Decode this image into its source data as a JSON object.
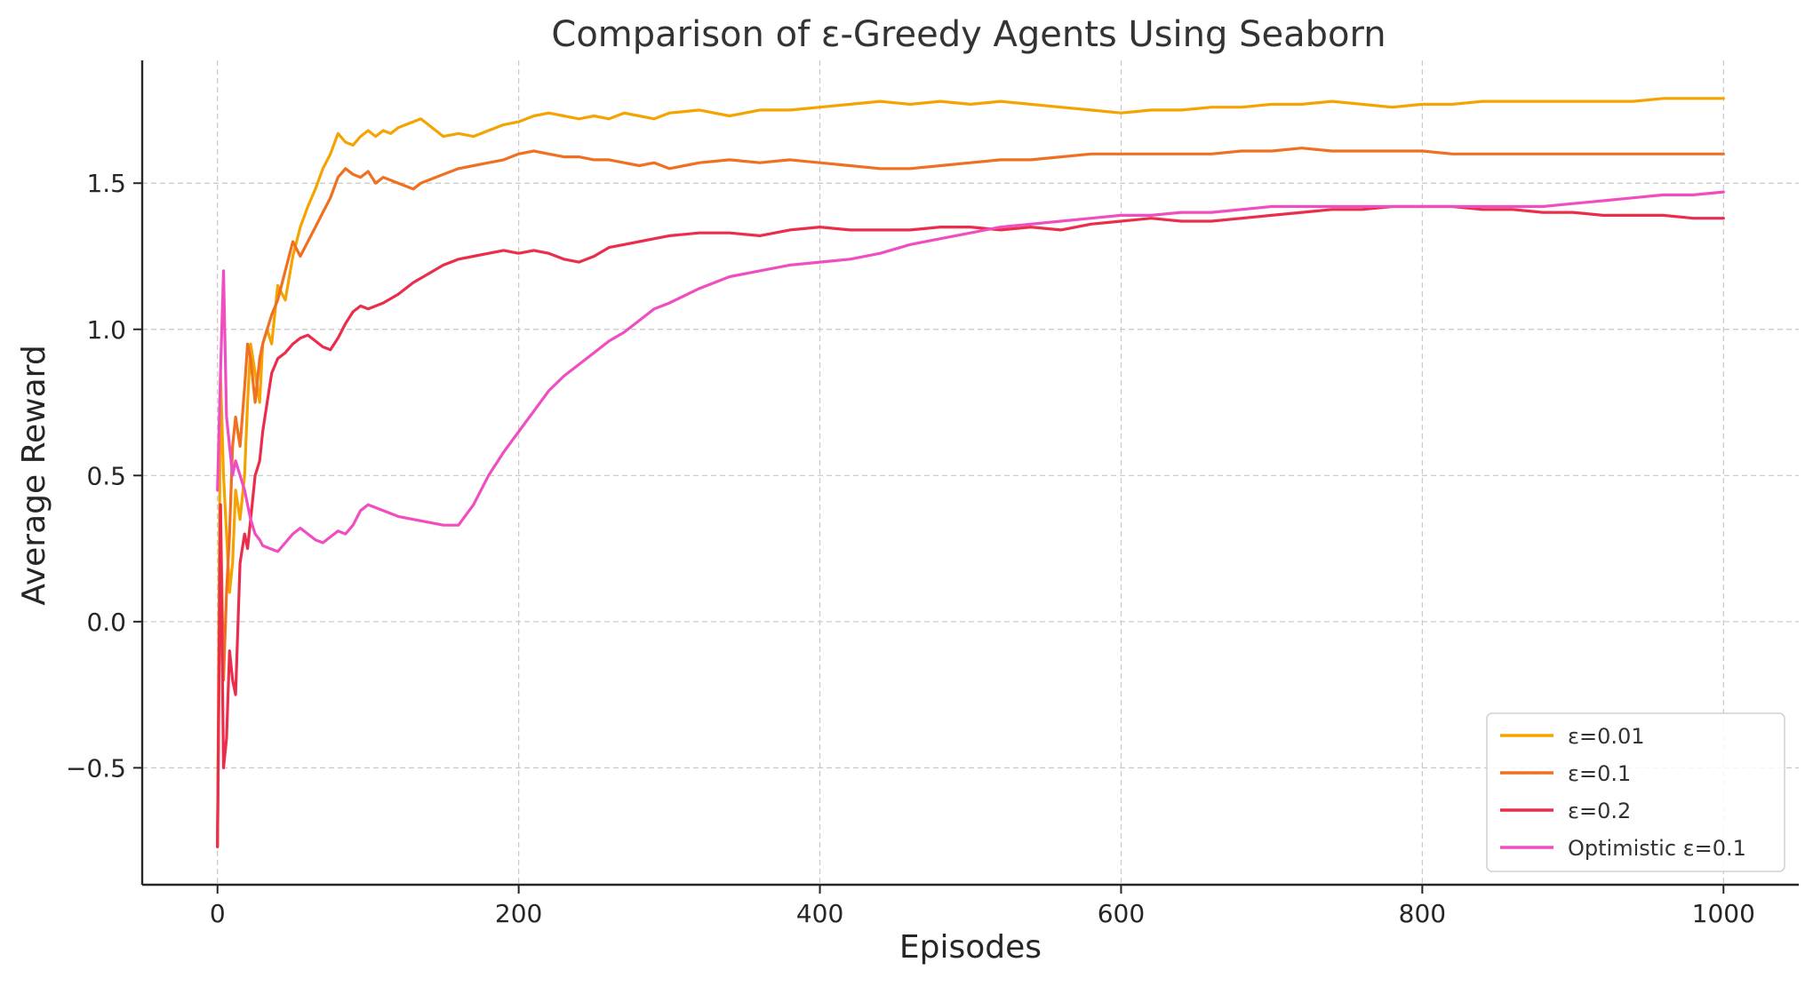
{
  "chart_data": {
    "type": "line",
    "title": "Comparison of ε-Greedy Agents Using Seaborn",
    "xlabel": "Episodes",
    "ylabel": "Average Reward",
    "xlim": [
      -50,
      1050
    ],
    "ylim": [
      -0.9,
      1.92
    ],
    "xticks": [
      0,
      200,
      400,
      600,
      800,
      1000
    ],
    "xtick_labels": [
      "0",
      "200",
      "400",
      "600",
      "800",
      "1000"
    ],
    "yticks": [
      -0.5,
      0.0,
      0.5,
      1.0,
      1.5
    ],
    "ytick_labels": [
      "−0.5",
      "0.0",
      "0.5",
      "1.0",
      "1.5"
    ],
    "grid": true,
    "legend_position": "lower-right",
    "series": [
      {
        "name": "ε=0.01",
        "color": "#f5a300",
        "x": [
          0,
          2,
          4,
          6,
          8,
          10,
          12,
          15,
          18,
          20,
          22,
          25,
          28,
          30,
          33,
          36,
          40,
          45,
          50,
          55,
          60,
          65,
          70,
          75,
          80,
          85,
          90,
          95,
          100,
          105,
          110,
          115,
          120,
          125,
          130,
          135,
          140,
          145,
          150,
          160,
          170,
          180,
          190,
          200,
          210,
          220,
          230,
          240,
          250,
          260,
          270,
          280,
          290,
          300,
          320,
          340,
          360,
          380,
          400,
          420,
          440,
          460,
          480,
          500,
          520,
          540,
          560,
          580,
          600,
          620,
          640,
          660,
          680,
          700,
          720,
          740,
          760,
          780,
          800,
          820,
          840,
          860,
          880,
          900,
          920,
          940,
          960,
          980,
          1000
        ],
        "y": [
          -0.77,
          0.85,
          0.5,
          0.3,
          0.1,
          0.2,
          0.45,
          0.35,
          0.5,
          0.75,
          0.95,
          0.85,
          0.75,
          0.95,
          1.0,
          0.95,
          1.15,
          1.1,
          1.25,
          1.35,
          1.42,
          1.48,
          1.55,
          1.6,
          1.67,
          1.64,
          1.63,
          1.66,
          1.68,
          1.66,
          1.68,
          1.67,
          1.69,
          1.7,
          1.71,
          1.72,
          1.7,
          1.68,
          1.66,
          1.67,
          1.66,
          1.68,
          1.7,
          1.71,
          1.73,
          1.74,
          1.73,
          1.72,
          1.73,
          1.72,
          1.74,
          1.73,
          1.72,
          1.74,
          1.75,
          1.73,
          1.75,
          1.75,
          1.76,
          1.77,
          1.78,
          1.77,
          1.78,
          1.77,
          1.78,
          1.77,
          1.76,
          1.75,
          1.74,
          1.75,
          1.75,
          1.76,
          1.76,
          1.77,
          1.77,
          1.78,
          1.77,
          1.76,
          1.77,
          1.77,
          1.78,
          1.78,
          1.78,
          1.78,
          1.78,
          1.78,
          1.79,
          1.79,
          1.79
        ]
      },
      {
        "name": "ε=0.1",
        "color": "#f07022",
        "x": [
          0,
          2,
          4,
          6,
          8,
          10,
          12,
          15,
          18,
          20,
          22,
          25,
          28,
          30,
          33,
          36,
          40,
          45,
          50,
          55,
          60,
          65,
          70,
          75,
          80,
          85,
          90,
          95,
          100,
          105,
          110,
          115,
          120,
          125,
          130,
          135,
          140,
          150,
          160,
          170,
          180,
          190,
          200,
          210,
          220,
          230,
          240,
          250,
          260,
          270,
          280,
          290,
          300,
          320,
          340,
          360,
          380,
          400,
          420,
          440,
          460,
          480,
          500,
          520,
          540,
          560,
          580,
          600,
          620,
          640,
          660,
          680,
          700,
          720,
          740,
          760,
          780,
          800,
          820,
          840,
          860,
          880,
          900,
          920,
          940,
          960,
          980,
          1000
        ],
        "y": [
          -0.77,
          0.4,
          -0.2,
          0.1,
          0.3,
          0.6,
          0.7,
          0.6,
          0.8,
          0.95,
          0.9,
          0.75,
          0.9,
          0.95,
          1.0,
          1.05,
          1.1,
          1.2,
          1.3,
          1.25,
          1.3,
          1.35,
          1.4,
          1.45,
          1.52,
          1.55,
          1.53,
          1.52,
          1.54,
          1.5,
          1.52,
          1.51,
          1.5,
          1.49,
          1.48,
          1.5,
          1.51,
          1.53,
          1.55,
          1.56,
          1.57,
          1.58,
          1.6,
          1.61,
          1.6,
          1.59,
          1.59,
          1.58,
          1.58,
          1.57,
          1.56,
          1.57,
          1.55,
          1.57,
          1.58,
          1.57,
          1.58,
          1.57,
          1.56,
          1.55,
          1.55,
          1.56,
          1.57,
          1.58,
          1.58,
          1.59,
          1.6,
          1.6,
          1.6,
          1.6,
          1.6,
          1.61,
          1.61,
          1.62,
          1.61,
          1.61,
          1.61,
          1.61,
          1.6,
          1.6,
          1.6,
          1.6,
          1.6,
          1.6,
          1.6,
          1.6,
          1.6,
          1.6
        ]
      },
      {
        "name": "ε=0.2",
        "color": "#ea2d4b",
        "x": [
          0,
          2,
          4,
          6,
          8,
          10,
          12,
          15,
          18,
          20,
          22,
          25,
          28,
          30,
          33,
          36,
          40,
          45,
          50,
          55,
          60,
          65,
          70,
          75,
          80,
          85,
          90,
          95,
          100,
          110,
          120,
          130,
          140,
          150,
          160,
          170,
          180,
          190,
          200,
          210,
          220,
          230,
          240,
          250,
          260,
          270,
          280,
          290,
          300,
          320,
          340,
          360,
          380,
          400,
          420,
          440,
          460,
          480,
          500,
          520,
          540,
          560,
          580,
          600,
          620,
          640,
          660,
          680,
          700,
          720,
          740,
          760,
          780,
          800,
          820,
          840,
          860,
          880,
          900,
          920,
          940,
          960,
          980,
          1000
        ],
        "y": [
          -0.77,
          0.4,
          -0.5,
          -0.4,
          -0.1,
          -0.2,
          -0.25,
          0.2,
          0.3,
          0.25,
          0.35,
          0.5,
          0.55,
          0.65,
          0.75,
          0.85,
          0.9,
          0.92,
          0.95,
          0.97,
          0.98,
          0.96,
          0.94,
          0.93,
          0.97,
          1.02,
          1.06,
          1.08,
          1.07,
          1.09,
          1.12,
          1.16,
          1.19,
          1.22,
          1.24,
          1.25,
          1.26,
          1.27,
          1.26,
          1.27,
          1.26,
          1.24,
          1.23,
          1.25,
          1.28,
          1.29,
          1.3,
          1.31,
          1.32,
          1.33,
          1.33,
          1.32,
          1.34,
          1.35,
          1.34,
          1.34,
          1.34,
          1.35,
          1.35,
          1.34,
          1.35,
          1.34,
          1.36,
          1.37,
          1.38,
          1.37,
          1.37,
          1.38,
          1.39,
          1.4,
          1.41,
          1.41,
          1.42,
          1.42,
          1.42,
          1.41,
          1.41,
          1.4,
          1.4,
          1.39,
          1.39,
          1.39,
          1.38,
          1.38
        ]
      },
      {
        "name": "Optimistic ε=0.1",
        "color": "#f04ec0",
        "x": [
          0,
          2,
          4,
          6,
          8,
          10,
          12,
          15,
          18,
          20,
          22,
          25,
          28,
          30,
          35,
          40,
          45,
          50,
          55,
          60,
          65,
          70,
          75,
          80,
          85,
          90,
          95,
          100,
          110,
          120,
          130,
          140,
          150,
          160,
          170,
          180,
          190,
          200,
          210,
          220,
          230,
          240,
          250,
          260,
          270,
          280,
          290,
          300,
          320,
          340,
          360,
          380,
          400,
          420,
          440,
          460,
          480,
          500,
          520,
          540,
          560,
          580,
          600,
          620,
          640,
          660,
          680,
          700,
          720,
          740,
          760,
          780,
          800,
          820,
          840,
          860,
          880,
          900,
          920,
          940,
          960,
          980,
          1000
        ],
        "y": [
          0.45,
          0.85,
          1.2,
          0.7,
          0.6,
          0.5,
          0.55,
          0.5,
          0.45,
          0.4,
          0.35,
          0.3,
          0.28,
          0.26,
          0.25,
          0.24,
          0.27,
          0.3,
          0.32,
          0.3,
          0.28,
          0.27,
          0.29,
          0.31,
          0.3,
          0.33,
          0.38,
          0.4,
          0.38,
          0.36,
          0.35,
          0.34,
          0.33,
          0.33,
          0.4,
          0.5,
          0.58,
          0.65,
          0.72,
          0.79,
          0.84,
          0.88,
          0.92,
          0.96,
          0.99,
          1.03,
          1.07,
          1.09,
          1.14,
          1.18,
          1.2,
          1.22,
          1.23,
          1.24,
          1.26,
          1.29,
          1.31,
          1.33,
          1.35,
          1.36,
          1.37,
          1.38,
          1.39,
          1.39,
          1.4,
          1.4,
          1.41,
          1.42,
          1.42,
          1.42,
          1.42,
          1.42,
          1.42,
          1.42,
          1.42,
          1.42,
          1.42,
          1.43,
          1.44,
          1.45,
          1.46,
          1.46,
          1.47
        ]
      }
    ]
  }
}
